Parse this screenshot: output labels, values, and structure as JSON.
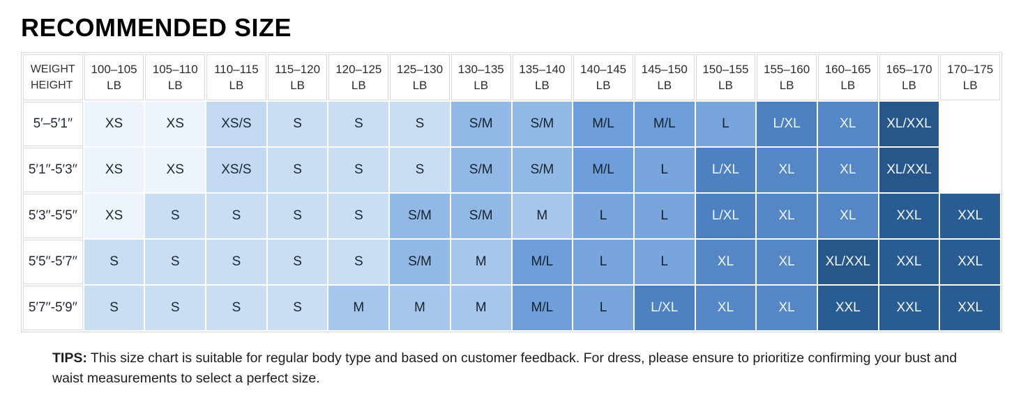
{
  "chart_data": {
    "type": "table",
    "title": "RECOMMENDED SIZE",
    "column_axis_label": "WEIGHT",
    "row_axis_label": "HEIGHT",
    "column_unit": "LB",
    "columns": [
      "100–105",
      "105–110",
      "110–115",
      "115–120",
      "120–125",
      "125–130",
      "130–135",
      "135–140",
      "140–145",
      "145–150",
      "150–155",
      "155–160",
      "160–165",
      "165–170",
      "170–175"
    ],
    "rows": [
      {
        "height": "5′–5′1′′",
        "sizes": [
          "XS",
          "XS",
          "XS/S",
          "S",
          "S",
          "S",
          "S/M",
          "S/M",
          "M/L",
          "M/L",
          "L",
          "L/XL",
          "XL",
          "XL/XXL",
          ""
        ]
      },
      {
        "height": "5′1′′-5′3′′",
        "sizes": [
          "XS",
          "XS",
          "XS/S",
          "S",
          "S",
          "S",
          "S/M",
          "S/M",
          "M/L",
          "L",
          "L/XL",
          "XL",
          "XL",
          "XL/XXL",
          ""
        ]
      },
      {
        "height": "5′3′′-5′5′′",
        "sizes": [
          "XS",
          "S",
          "S",
          "S",
          "S",
          "S/M",
          "S/M",
          "M",
          "L",
          "L",
          "L/XL",
          "XL",
          "XL",
          "XXL",
          "XXL"
        ]
      },
      {
        "height": "5′5′′-5′7′′",
        "sizes": [
          "S",
          "S",
          "S",
          "S",
          "S",
          "S/M",
          "M",
          "M/L",
          "L",
          "L",
          "XL",
          "XL",
          "XL/XXL",
          "XXL",
          "XXL"
        ]
      },
      {
        "height": "5′7′′-5′9′′",
        "sizes": [
          "S",
          "S",
          "S",
          "S",
          "M",
          "M",
          "M",
          "M/L",
          "L",
          "L/XL",
          "XL",
          "XL",
          "XXL",
          "XXL",
          "XXL"
        ]
      }
    ]
  },
  "size_colors": {
    "XS": {
      "bg": "#eef4fb",
      "fg": "#1c2633"
    },
    "XS/S": {
      "bg": "#c3d9f1",
      "fg": "#1c2633"
    },
    "S": {
      "bg": "#c9def3",
      "fg": "#1c2633"
    },
    "S/M": {
      "bg": "#92b9e6",
      "fg": "#16222f"
    },
    "M": {
      "bg": "#a6c6eb",
      "fg": "#16222f"
    },
    "M/L": {
      "bg": "#6f9fda",
      "fg": "#13202e"
    },
    "L": {
      "bg": "#78a5dc",
      "fg": "#13202e"
    },
    "L/XL": {
      "bg": "#4d81c2",
      "fg": "#f4f8fc"
    },
    "XL": {
      "bg": "#5587c6",
      "fg": "#f4f8fc"
    },
    "XL/XXL": {
      "bg": "#27568b",
      "fg": "#f4f8fc"
    },
    "XXL": {
      "bg": "#2a5c94",
      "fg": "#f4f8fc"
    },
    "": {
      "bg": "#ffffff",
      "fg": "#1c2633"
    }
  },
  "tips": {
    "label": "TIPS:",
    "text": " This size chart is suitable for regular body type and based on customer feedback. For dress, please ensure to prioritize confirming your bust and waist measurements to select a perfect size."
  }
}
